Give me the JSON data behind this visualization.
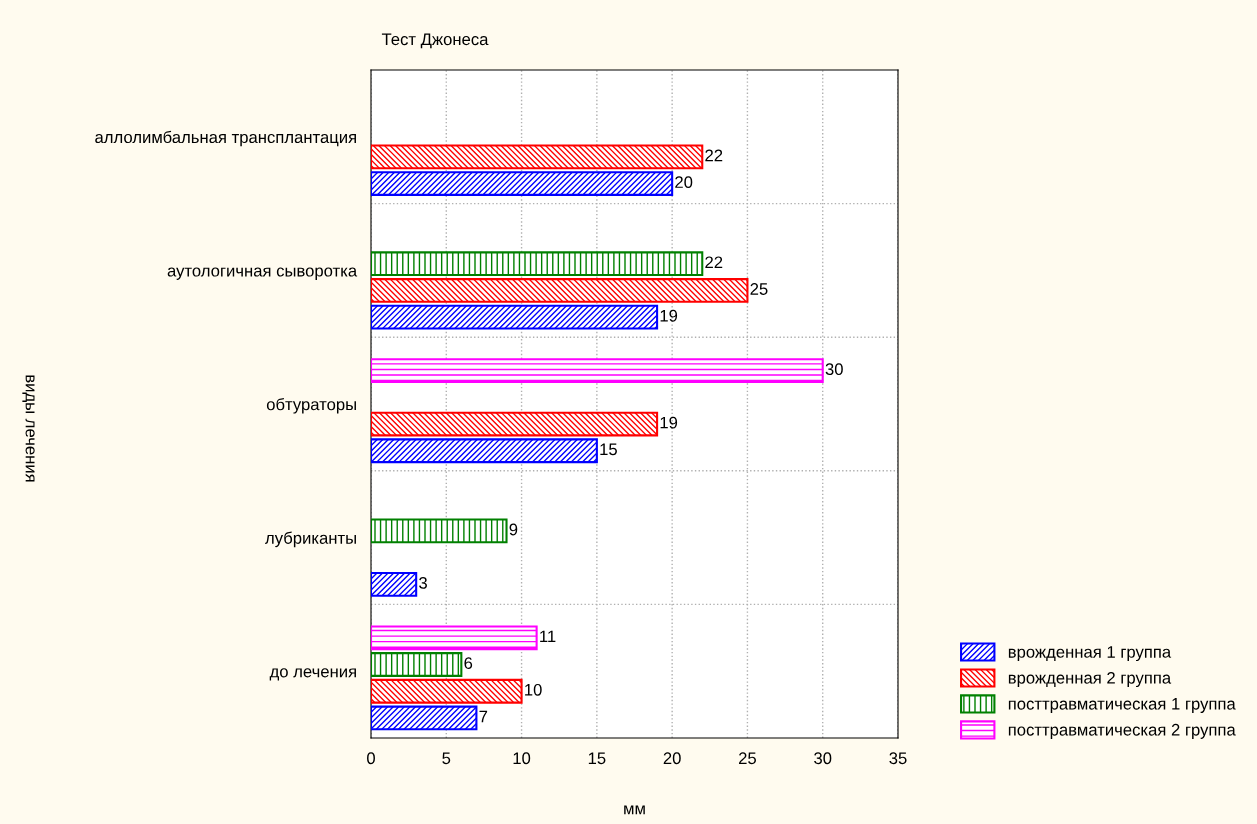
{
  "chart_data": {
    "type": "bar",
    "orientation": "horizontal",
    "title": "Тест Джонеса",
    "xlabel": "мм",
    "ylabel": "виды лечения",
    "categories": [
      "аллолимбальная трансплантация",
      "аутологичная сыворотка",
      "обтураторы",
      "лубриканты",
      "до лечения"
    ],
    "series": [
      {
        "name": "врожденная 1 группа",
        "color": "#0000ff",
        "values": [
          20,
          19,
          15,
          3,
          7
        ]
      },
      {
        "name": "врожденная 2 группа",
        "color": "#ff0000",
        "values": [
          22,
          25,
          19,
          null,
          10
        ]
      },
      {
        "name": "посттравматическая 1 группа",
        "color": "#008000",
        "values": [
          null,
          22,
          null,
          9,
          6
        ]
      },
      {
        "name": "посттравматическая 2 группа",
        "color": "#ff00ff",
        "values": [
          null,
          null,
          30,
          null,
          11
        ]
      }
    ],
    "xlim": [
      0,
      35
    ],
    "xticks": [
      0,
      5,
      10,
      15,
      20,
      25,
      30,
      35
    ],
    "grid": true,
    "legend": "bottom right",
    "data_labels": true
  }
}
